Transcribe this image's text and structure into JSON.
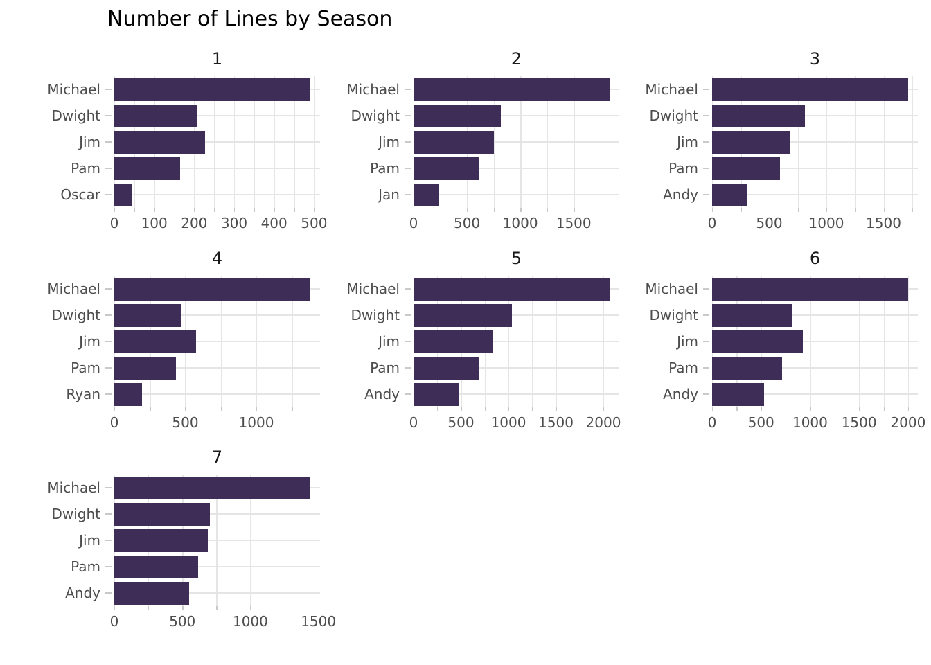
{
  "title": "Number of Lines by Season",
  "chart_data": {
    "type": "bar",
    "orientation": "horizontal",
    "title": "Number of Lines by Season",
    "facet_by": "season",
    "grid": true,
    "legend": "none",
    "facets": [
      {
        "label": "1",
        "categories": [
          "Michael",
          "Dwight",
          "Jim",
          "Pam",
          "Oscar"
        ],
        "values": [
          490,
          207,
          227,
          164,
          43
        ],
        "x_ticks": [
          0,
          100,
          200,
          300,
          400,
          500
        ],
        "minor_step": 50,
        "xlim": [
          0,
          515
        ]
      },
      {
        "label": "2",
        "categories": [
          "Michael",
          "Dwight",
          "Jim",
          "Pam",
          "Jan"
        ],
        "values": [
          1835,
          820,
          750,
          610,
          237
        ],
        "x_ticks": [
          0,
          500,
          1000,
          1500
        ],
        "minor_step": 250,
        "xlim": [
          0,
          1927
        ]
      },
      {
        "label": "3",
        "categories": [
          "Michael",
          "Dwight",
          "Jim",
          "Pam",
          "Andy"
        ],
        "values": [
          1715,
          815,
          685,
          595,
          305
        ],
        "x_ticks": [
          0,
          500,
          1000,
          1500
        ],
        "minor_step": 250,
        "xlim": [
          0,
          1800
        ]
      },
      {
        "label": "4",
        "categories": [
          "Michael",
          "Dwight",
          "Jim",
          "Pam",
          "Ryan"
        ],
        "values": [
          1380,
          475,
          575,
          435,
          195
        ],
        "x_ticks": [
          0,
          500,
          1000
        ],
        "minor_step": 250,
        "xlim": [
          0,
          1449
        ]
      },
      {
        "label": "5",
        "categories": [
          "Michael",
          "Dwight",
          "Jim",
          "Pam",
          "Andy"
        ],
        "values": [
          2065,
          1035,
          840,
          695,
          480
        ],
        "x_ticks": [
          0,
          500,
          1000,
          1500,
          2000
        ],
        "minor_step": 250,
        "xlim": [
          0,
          2168
        ]
      },
      {
        "label": "6",
        "categories": [
          "Michael",
          "Dwight",
          "Jim",
          "Pam",
          "Andy"
        ],
        "values": [
          2000,
          815,
          925,
          715,
          530
        ],
        "x_ticks": [
          0,
          500,
          1000,
          1500,
          2000
        ],
        "minor_step": 250,
        "xlim": [
          0,
          2100
        ]
      },
      {
        "label": "7",
        "categories": [
          "Michael",
          "Dwight",
          "Jim",
          "Pam",
          "Andy"
        ],
        "values": [
          1440,
          700,
          685,
          615,
          550
        ],
        "x_ticks": [
          0,
          500,
          1000,
          1500
        ],
        "minor_step": 250,
        "xlim": [
          0,
          1512
        ]
      }
    ],
    "colors": {
      "bar": "#3e2d57",
      "grid": "#e5e5e5",
      "tick_mark": "#c9c9c9",
      "axis_text": "#4d4d4d",
      "facet_title": "#1a1a1a",
      "title": "#000000",
      "background": "#ffffff"
    }
  }
}
